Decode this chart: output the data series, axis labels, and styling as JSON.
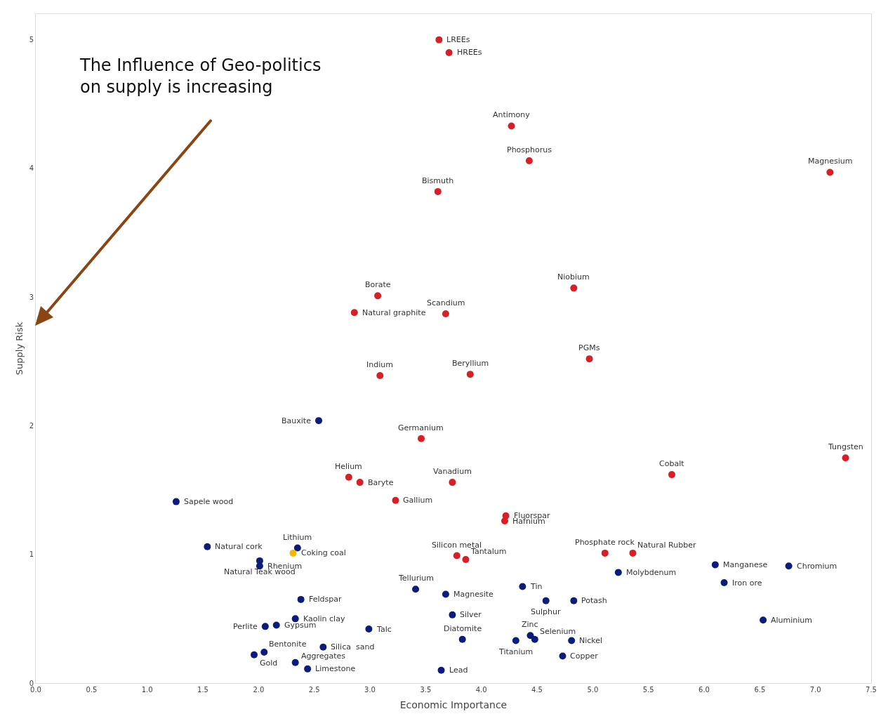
{
  "chart_data": {
    "type": "scatter",
    "xlabel": "Economic Importance",
    "ylabel": "Supply Risk",
    "xlim": [
      0,
      7.5
    ],
    "ylim": [
      0,
      5.2
    ],
    "xticks": [
      {
        "value": 0,
        "label": "0.0"
      },
      0.5,
      {
        "value": 1,
        "label": "1.0"
      },
      1.5,
      {
        "value": 2,
        "label": "2.0"
      },
      2.5,
      {
        "value": 3,
        "label": "3.0"
      },
      3.5,
      {
        "value": 4,
        "label": "4.0"
      },
      4.5,
      {
        "value": 5,
        "label": "5.0"
      },
      5.5,
      {
        "value": 6,
        "label": "6.0"
      },
      6.5,
      {
        "value": 7,
        "label": "7.0"
      },
      7.5
    ],
    "yticks": [
      0,
      1,
      2,
      3,
      4,
      5
    ],
    "grid": false,
    "marker": "circle",
    "series": [
      {
        "color": "#d91f26",
        "x": [
          3.62,
          3.71,
          4.27,
          4.43,
          7.13,
          3.61,
          4.83,
          3.07,
          2.86,
          3.68,
          4.97,
          3.09,
          3.9,
          3.46,
          7.27,
          5.71,
          2.81,
          2.91,
          3.74,
          3.23,
          4.22,
          4.21,
          5.11,
          5.36,
          3.78,
          3.86
        ],
        "values": [
          5.0,
          4.9,
          4.33,
          4.06,
          3.97,
          3.82,
          3.07,
          3.01,
          2.88,
          2.87,
          2.52,
          2.39,
          2.4,
          1.9,
          1.75,
          1.62,
          1.6,
          1.56,
          1.56,
          1.42,
          1.3,
          1.26,
          1.01,
          1.01,
          0.99,
          0.96
        ]
      },
      {
        "color": "#0b1d78",
        "x": [
          2.54,
          1.26,
          1.54,
          2.35,
          2.01,
          2.01,
          3.41,
          3.68,
          4.37,
          4.58,
          4.83,
          5.23,
          6.1,
          6.76,
          6.18,
          6.53,
          2.38,
          2.33,
          2.06,
          2.16,
          2.99,
          3.74,
          3.83,
          4.44,
          4.48,
          4.31,
          4.81,
          4.73,
          3.64,
          2.05,
          2.58,
          1.96,
          2.33,
          2.44
        ],
        "values": [
          2.04,
          1.41,
          1.06,
          1.05,
          0.95,
          0.91,
          0.73,
          0.69,
          0.75,
          0.64,
          0.64,
          0.86,
          0.92,
          0.91,
          0.78,
          0.49,
          0.65,
          0.5,
          0.44,
          0.45,
          0.42,
          0.53,
          0.34,
          0.37,
          0.34,
          0.33,
          0.33,
          0.21,
          0.1,
          0.24,
          0.28,
          0.22,
          0.16,
          0.11
        ]
      },
      {
        "color": "#f5b800",
        "x": [
          2.31
        ],
        "values": [
          1.01
        ]
      }
    ],
    "annotations": [
      "The Influence of Geo-politics\non supply is increasing",
      {
        "text": "LREEs",
        "x": 3.62,
        "y": 5.0
      },
      {
        "text": "HREEs",
        "x": 3.71,
        "y": 4.9
      },
      {
        "text": "Antimony",
        "x": 4.27,
        "y": 4.33
      },
      {
        "text": "Phosphorus",
        "x": 4.43,
        "y": 4.06
      },
      {
        "text": "Magnesium",
        "x": 7.13,
        "y": 3.97
      },
      {
        "text": "Bismuth",
        "x": 3.61,
        "y": 3.82
      },
      {
        "text": "Niobium",
        "x": 4.83,
        "y": 3.07
      },
      {
        "text": "Borate",
        "x": 3.07,
        "y": 3.01
      },
      {
        "text": "Natural graphite",
        "x": 2.86,
        "y": 2.88
      },
      {
        "text": "Scandium",
        "x": 3.68,
        "y": 2.87
      },
      {
        "text": "PGMs",
        "x": 4.97,
        "y": 2.52
      },
      {
        "text": "Indium",
        "x": 3.09,
        "y": 2.39
      },
      {
        "text": "Beryllium",
        "x": 3.9,
        "y": 2.4
      },
      {
        "text": "Germanium",
        "x": 3.46,
        "y": 1.9
      },
      {
        "text": "Tungsten",
        "x": 7.27,
        "y": 1.75
      },
      {
        "text": "Cobalt",
        "x": 5.71,
        "y": 1.62
      },
      {
        "text": "Helium",
        "x": 2.81,
        "y": 1.6
      },
      {
        "text": "Baryte",
        "x": 2.91,
        "y": 1.56
      },
      {
        "text": "Vanadium",
        "x": 3.74,
        "y": 1.56
      },
      {
        "text": "Gallium",
        "x": 3.23,
        "y": 1.42
      },
      {
        "text": "Fluorspar",
        "x": 4.22,
        "y": 1.3
      },
      {
        "text": "Hafnium",
        "x": 4.21,
        "y": 1.26
      },
      {
        "text": "Phosphate rock",
        "x": 5.11,
        "y": 1.01
      },
      {
        "text": "Natural Rubber",
        "x": 5.36,
        "y": 1.01
      },
      {
        "text": "Silicon metal",
        "x": 3.78,
        "y": 0.99
      },
      {
        "text": "Tantalum",
        "x": 3.86,
        "y": 0.96
      },
      {
        "text": "Bauxite",
        "x": 2.54,
        "y": 2.04
      },
      {
        "text": "Sapele wood",
        "x": 1.26,
        "y": 1.41
      },
      {
        "text": "Natural cork",
        "x": 1.54,
        "y": 1.06
      },
      {
        "text": "Lithium",
        "x": 2.35,
        "y": 1.05
      },
      {
        "text": "Natural Teak wood",
        "x": 2.01,
        "y": 0.95
      },
      {
        "text": "Rhenium",
        "x": 2.01,
        "y": 0.91
      },
      {
        "text": "Tellurium",
        "x": 3.41,
        "y": 0.73
      },
      {
        "text": "Magnesite",
        "x": 3.68,
        "y": 0.69
      },
      {
        "text": "Tin",
        "x": 4.37,
        "y": 0.75
      },
      {
        "text": "Sulphur",
        "x": 4.58,
        "y": 0.64
      },
      {
        "text": "Potash",
        "x": 4.83,
        "y": 0.64
      },
      {
        "text": "Molybdenum",
        "x": 5.23,
        "y": 0.86
      },
      {
        "text": "Manganese",
        "x": 6.1,
        "y": 0.92
      },
      {
        "text": "Chromium",
        "x": 6.76,
        "y": 0.91
      },
      {
        "text": "Iron ore",
        "x": 6.18,
        "y": 0.78
      },
      {
        "text": "Aluminium",
        "x": 6.53,
        "y": 0.49
      },
      {
        "text": "Feldspar",
        "x": 2.38,
        "y": 0.65
      },
      {
        "text": "Kaolin clay",
        "x": 2.33,
        "y": 0.5
      },
      {
        "text": "Perlite",
        "x": 2.06,
        "y": 0.44
      },
      {
        "text": "Gypsum",
        "x": 2.16,
        "y": 0.45
      },
      {
        "text": "Talc",
        "x": 2.99,
        "y": 0.42
      },
      {
        "text": "Silver",
        "x": 3.74,
        "y": 0.53
      },
      {
        "text": "Diatomite",
        "x": 3.83,
        "y": 0.34
      },
      {
        "text": "Zinc",
        "x": 4.44,
        "y": 0.37
      },
      {
        "text": "Selenium",
        "x": 4.48,
        "y": 0.34
      },
      {
        "text": "Titanium",
        "x": 4.31,
        "y": 0.33
      },
      {
        "text": "Nickel",
        "x": 4.81,
        "y": 0.33
      },
      {
        "text": "Copper",
        "x": 4.73,
        "y": 0.21
      },
      {
        "text": "Lead",
        "x": 3.64,
        "y": 0.1
      },
      {
        "text": "Bentonite",
        "x": 2.05,
        "y": 0.24
      },
      {
        "text": "Silica  sand",
        "x": 2.58,
        "y": 0.28
      },
      {
        "text": "Gold",
        "x": 1.96,
        "y": 0.22
      },
      {
        "text": "Aggregates",
        "x": 2.33,
        "y": 0.16
      },
      {
        "text": "Limestone",
        "x": 2.44,
        "y": 0.11
      },
      {
        "text": "Coking coal",
        "x": 2.31,
        "y": 1.01
      }
    ]
  }
}
